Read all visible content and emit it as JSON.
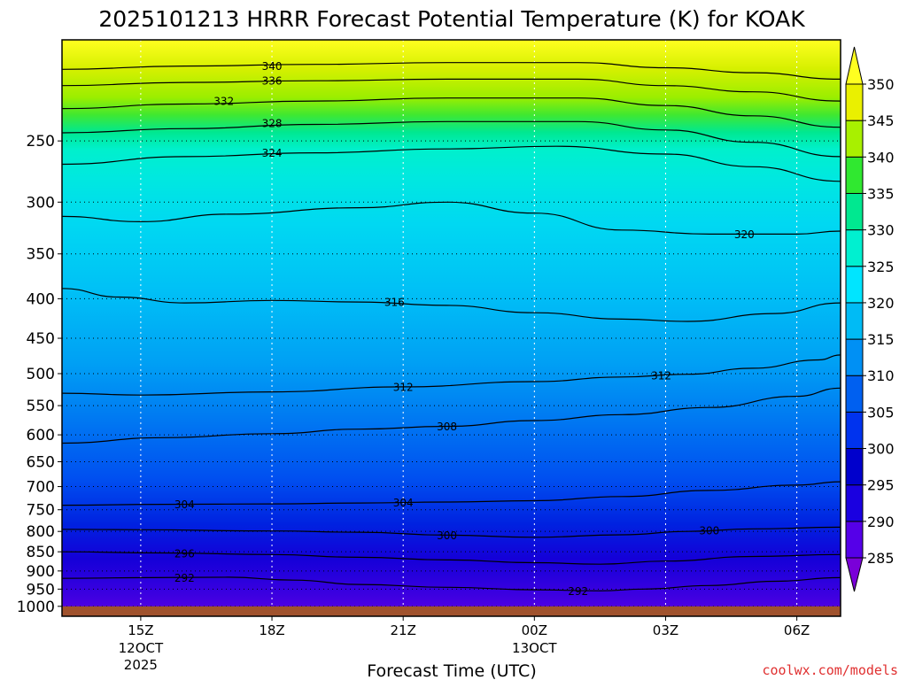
{
  "chart_data": {
    "type": "contour",
    "title": "2025101213 HRRR Forecast Potential Temperature (K) for KOAK",
    "xlabel": "Forecast Time (UTC)",
    "ylabel": "",
    "credit": "coolwx.com/models",
    "y_scale": "log",
    "y_reversed": true,
    "y_range": [
      185,
      1030
    ],
    "y_ticks": [
      "250",
      "300",
      "350",
      "400",
      "450",
      "500",
      "550",
      "600",
      "650",
      "700",
      "750",
      "800",
      "850",
      "900",
      "950",
      "1000"
    ],
    "y_tick_values": [
      250,
      300,
      350,
      400,
      450,
      500,
      550,
      600,
      650,
      700,
      750,
      800,
      850,
      900,
      950,
      1000
    ],
    "x_range": [
      13.2,
      31
    ],
    "x_ticks": [
      {
        "hour": 15,
        "label": "15Z",
        "sub1": "12OCT",
        "sub2": "2025"
      },
      {
        "hour": 18,
        "label": "18Z",
        "sub1": "",
        "sub2": ""
      },
      {
        "hour": 21,
        "label": "21Z",
        "sub1": "",
        "sub2": ""
      },
      {
        "hour": 24,
        "label": "00Z",
        "sub1": "13OCT",
        "sub2": ""
      },
      {
        "hour": 27,
        "label": "03Z",
        "sub1": "",
        "sub2": ""
      },
      {
        "hour": 30,
        "label": "06Z",
        "sub1": "",
        "sub2": ""
      }
    ],
    "surface_pressure": 1000,
    "grid": true,
    "colorbar": {
      "levels": [
        285,
        290,
        295,
        300,
        305,
        310,
        315,
        320,
        325,
        330,
        335,
        340,
        345,
        350
      ],
      "labels": [
        "285",
        "290",
        "295",
        "300",
        "305",
        "310",
        "315",
        "320",
        "325",
        "330",
        "335",
        "340",
        "345",
        "350"
      ],
      "colors": [
        "#7a00d8",
        "#5500e8",
        "#1a00e0",
        "#0000cc",
        "#0033ee",
        "#0060f0",
        "#0090f4",
        "#00bbf5",
        "#00e5ff",
        "#00f0d0",
        "#00e890",
        "#30e830",
        "#a8f000",
        "#eaf000",
        "#ffff20"
      ]
    },
    "contours": [
      {
        "theta": 292,
        "label": "292",
        "points": [
          [
            13.2,
            920
          ],
          [
            15.2,
            918
          ],
          [
            17,
            917
          ],
          [
            18.5,
            925
          ],
          [
            20,
            937
          ],
          [
            22,
            945
          ],
          [
            24,
            952
          ],
          [
            25.5,
            955
          ],
          [
            26.5,
            950
          ],
          [
            28,
            940
          ],
          [
            29.5,
            928
          ],
          [
            31,
            918
          ]
        ]
      },
      {
        "theta": 296,
        "label": "296",
        "points": [
          [
            13.2,
            850
          ],
          [
            15.5,
            853
          ],
          [
            18,
            857
          ],
          [
            20,
            864
          ],
          [
            22,
            871
          ],
          [
            24,
            878
          ],
          [
            25.5,
            882
          ],
          [
            27,
            874
          ],
          [
            29,
            862
          ],
          [
            31,
            857
          ]
        ]
      },
      {
        "theta": 300,
        "label": "300",
        "points": [
          [
            13.2,
            795
          ],
          [
            15,
            796
          ],
          [
            18,
            799
          ],
          [
            20,
            802
          ],
          [
            22,
            809
          ],
          [
            24,
            814
          ],
          [
            26,
            808
          ],
          [
            27.5,
            800
          ],
          [
            29,
            794
          ],
          [
            31,
            790
          ]
        ]
      },
      {
        "theta": 304,
        "label": "304",
        "points": [
          [
            13.2,
            740
          ],
          [
            15.5,
            738
          ],
          [
            18,
            737
          ],
          [
            20,
            735
          ],
          [
            22,
            733
          ],
          [
            24,
            730
          ],
          [
            26,
            721
          ],
          [
            28,
            708
          ],
          [
            30,
            697
          ],
          [
            31,
            690
          ]
        ]
      },
      {
        "theta": 308,
        "label": "308",
        "points": [
          [
            13.2,
            615
          ],
          [
            15.5,
            605
          ],
          [
            18,
            598
          ],
          [
            20,
            590
          ],
          [
            22,
            585
          ],
          [
            24,
            575
          ],
          [
            26,
            565
          ],
          [
            28,
            553
          ],
          [
            30,
            535
          ],
          [
            31,
            522
          ]
        ]
      },
      {
        "theta": 312,
        "label": "312",
        "points": [
          [
            13.2,
            530
          ],
          [
            15,
            533
          ],
          [
            18,
            528
          ],
          [
            21,
            520
          ],
          [
            24,
            512
          ],
          [
            26,
            505
          ],
          [
            27.5,
            501
          ],
          [
            29,
            492
          ],
          [
            30.5,
            480
          ],
          [
            31,
            473
          ]
        ]
      },
      {
        "theta": 316,
        "label": "316",
        "points": [
          [
            13.2,
            388
          ],
          [
            14.5,
            398
          ],
          [
            16,
            405
          ],
          [
            18,
            402
          ],
          [
            20,
            404
          ],
          [
            22,
            408
          ],
          [
            24,
            417
          ],
          [
            26,
            425
          ],
          [
            27.5,
            428
          ],
          [
            29.5,
            418
          ],
          [
            31,
            405
          ]
        ]
      },
      {
        "theta": 320,
        "label": "320",
        "points": [
          [
            13.2,
            313
          ],
          [
            15,
            318
          ],
          [
            17,
            311
          ],
          [
            20,
            305
          ],
          [
            22,
            300
          ],
          [
            24,
            310
          ],
          [
            26,
            326
          ],
          [
            28,
            330
          ],
          [
            30,
            330
          ],
          [
            31,
            327
          ]
        ]
      },
      {
        "theta": 324,
        "label": "324",
        "points": [
          [
            13.2,
            268
          ],
          [
            16,
            262
          ],
          [
            19,
            259
          ],
          [
            22,
            256
          ],
          [
            24.5,
            254
          ],
          [
            27,
            260
          ],
          [
            29,
            270
          ],
          [
            31,
            282
          ]
        ]
      },
      {
        "theta": 328,
        "label": "328",
        "points": [
          [
            13.2,
            244
          ],
          [
            16,
            241
          ],
          [
            19,
            238
          ],
          [
            22,
            236
          ],
          [
            25,
            236
          ],
          [
            27,
            242
          ],
          [
            29,
            251
          ],
          [
            31,
            262
          ]
        ]
      },
      {
        "theta": 332,
        "label": "332",
        "points": [
          [
            13.2,
            227
          ],
          [
            16,
            224
          ],
          [
            19,
            222
          ],
          [
            22,
            220
          ],
          [
            25,
            220
          ],
          [
            27,
            225
          ],
          [
            29,
            232
          ],
          [
            31,
            240
          ]
        ]
      },
      {
        "theta": 336,
        "label": "336",
        "points": [
          [
            13.2,
            212
          ],
          [
            16,
            210
          ],
          [
            19,
            209
          ],
          [
            22,
            208
          ],
          [
            25,
            208
          ],
          [
            27,
            212
          ],
          [
            29,
            216
          ],
          [
            31,
            222
          ]
        ]
      },
      {
        "theta": 340,
        "label": "340",
        "points": [
          [
            13.2,
            202
          ],
          [
            16,
            200
          ],
          [
            19,
            199
          ],
          [
            22,
            198
          ],
          [
            25,
            198
          ],
          [
            27,
            201
          ],
          [
            29,
            204
          ],
          [
            31,
            208
          ]
        ]
      }
    ],
    "contour_labels": [
      {
        "text": "340",
        "hour": 18,
        "p": 200
      },
      {
        "text": "336",
        "hour": 18,
        "p": 209
      },
      {
        "text": "332",
        "hour": 16.9,
        "p": 222
      },
      {
        "text": "328",
        "hour": 18,
        "p": 237
      },
      {
        "text": "324",
        "hour": 18,
        "p": 259
      },
      {
        "text": "320",
        "hour": 28.8,
        "p": 330
      },
      {
        "text": "316",
        "hour": 20.8,
        "p": 404
      },
      {
        "text": "312",
        "hour": 21,
        "p": 520
      },
      {
        "text": "312",
        "hour": 26.9,
        "p": 503
      },
      {
        "text": "308",
        "hour": 22,
        "p": 585
      },
      {
        "text": "304",
        "hour": 16,
        "p": 738
      },
      {
        "text": "304",
        "hour": 21,
        "p": 734
      },
      {
        "text": "300",
        "hour": 22,
        "p": 809
      },
      {
        "text": "300",
        "hour": 28,
        "p": 798
      },
      {
        "text": "296",
        "hour": 16,
        "p": 854
      },
      {
        "text": "292",
        "hour": 16,
        "p": 918
      },
      {
        "text": "292",
        "hour": 25,
        "p": 955
      }
    ]
  }
}
